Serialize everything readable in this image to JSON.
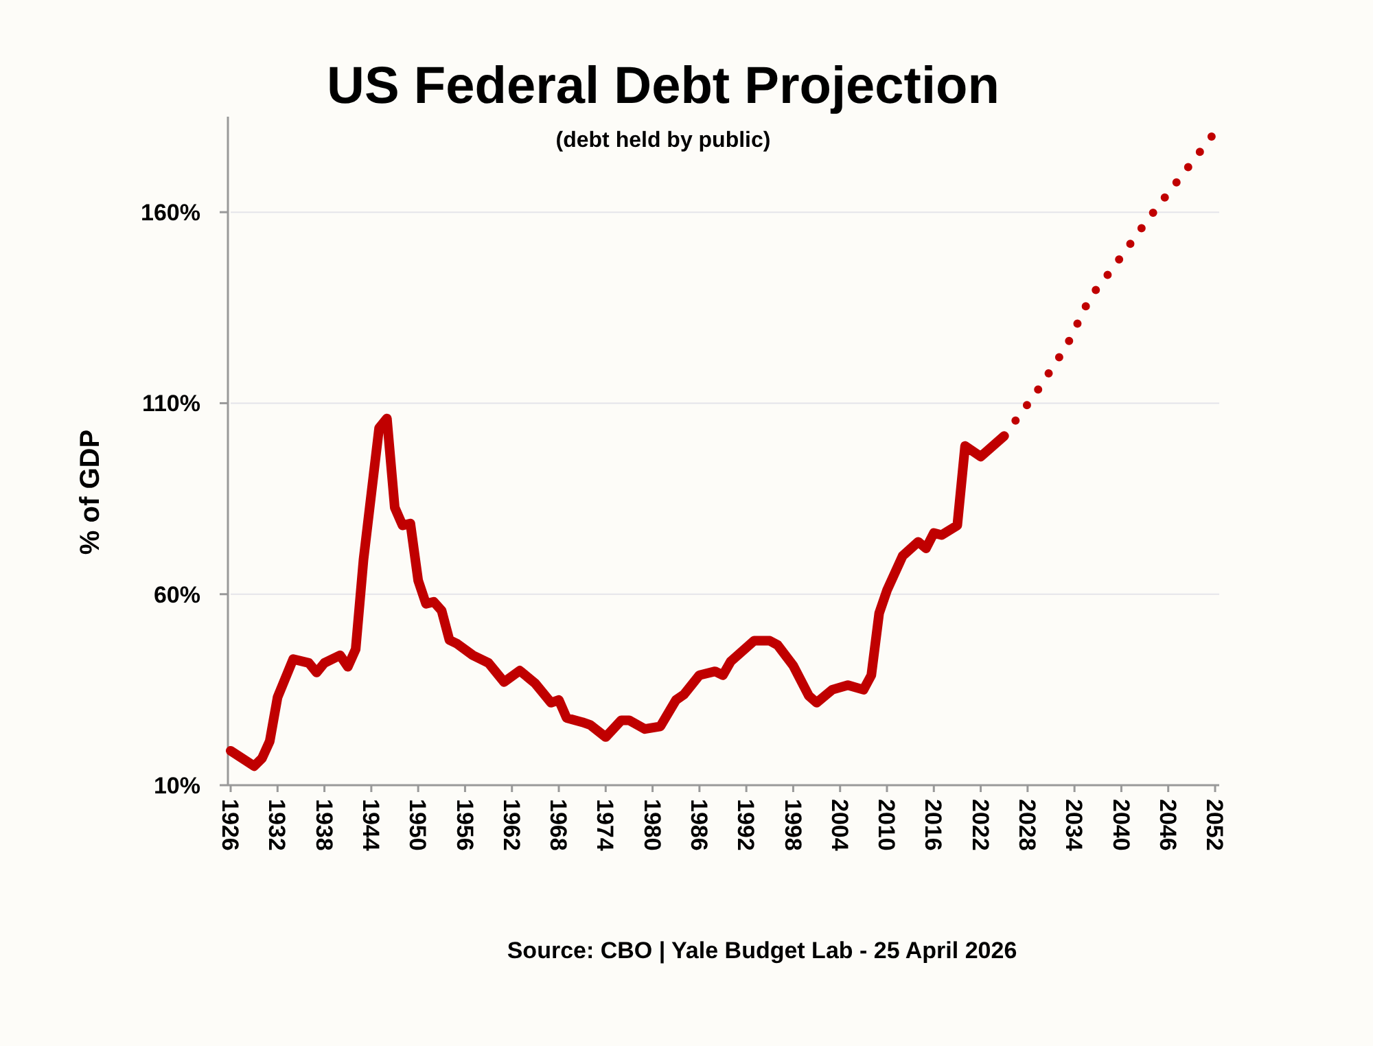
{
  "chart_data": {
    "type": "line",
    "title": "US Federal Debt Projection",
    "subtitle": "(debt held by public)",
    "ylabel": "% of GDP",
    "annotations": [
      "Source: CBO | Yale Budget Lab - 25 April 2026"
    ],
    "xlim": [
      1926,
      2052
    ],
    "xticks": [
      1926,
      1932,
      1938,
      1944,
      1950,
      1956,
      1962,
      1968,
      1974,
      1980,
      1986,
      1992,
      1998,
      2004,
      2010,
      2016,
      2022,
      2028,
      2034,
      2040,
      2046,
      2052
    ],
    "ylim": [
      10,
      185
    ],
    "yticks": [
      {
        "value": 10,
        "label": "10%"
      },
      {
        "value": 60,
        "label": "60%"
      },
      {
        "value": 110,
        "label": "110%"
      },
      {
        "value": 160,
        "label": "160%"
      }
    ],
    "grid": "y",
    "series": [
      {
        "color": "#c00000",
        "line_style": "solid",
        "x": [
          1926,
          1929,
          1930,
          1931,
          1932,
          1934,
          1936,
          1937,
          1938,
          1940,
          1941,
          1942,
          1943,
          1945,
          1946,
          1947,
          1948,
          1949,
          1950,
          1951,
          1952,
          1953,
          1954,
          1955,
          1957,
          1959,
          1961,
          1963,
          1965,
          1967,
          1968,
          1969,
          1971,
          1972,
          1974,
          1976,
          1977,
          1979,
          1981,
          1983,
          1984,
          1986,
          1988,
          1989,
          1990,
          1993,
          1995,
          1996,
          1998,
          2000,
          2001,
          2003,
          2005,
          2007,
          2008,
          2009,
          2010,
          2012,
          2014,
          2015,
          2016,
          2017,
          2019,
          2020,
          2022,
          2025
        ],
        "values": [
          19,
          15,
          17,
          21.5,
          33,
          43,
          42,
          39.5,
          42,
          44,
          41,
          45.6,
          69,
          103.5,
          106,
          82.7,
          78,
          78.5,
          63.6,
          57.5,
          58,
          55.7,
          48,
          47,
          44,
          42,
          37,
          40,
          36.6,
          31.6,
          32.3,
          27.6,
          26.5,
          25.8,
          22.6,
          27,
          27,
          24.7,
          25.4,
          32.3,
          33.7,
          38.8,
          39.8,
          38.8,
          42.4,
          47.8,
          47.8,
          46.7,
          41.3,
          33.4,
          31.6,
          35,
          36.2,
          35,
          38.8,
          55,
          61,
          70,
          73.7,
          72,
          76,
          75.5,
          78,
          98.8,
          96,
          101.4
        ]
      },
      {
        "color": "#c00000",
        "line_style": "dotted",
        "x": [
          2025,
          2029,
          2033,
          2036,
          2039,
          2043,
          2046,
          2049,
          2052
        ],
        "values": [
          101.4,
          112.5,
          125,
          137.7,
          145.6,
          157,
          165,
          173,
          181
        ]
      }
    ]
  }
}
